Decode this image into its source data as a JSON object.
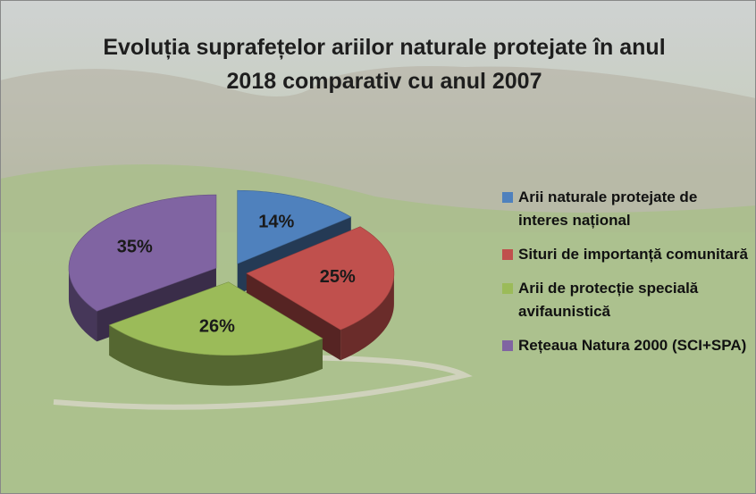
{
  "chart_data": {
    "type": "pie",
    "title": "Evoluția suprafețelor ariilor naturale protejate în anul 2018 comparativ cu anul 2007",
    "categories": [
      "Arii naturale protejate de interes național",
      "Situri de importanță comunitară",
      "Arii de protecție specială avifaunistică",
      "Rețeaua Natura 2000 (SCI+SPA)"
    ],
    "values": [
      14,
      25,
      26,
      35
    ],
    "value_labels": [
      "14%",
      "25%",
      "26%",
      "35%"
    ],
    "colors": [
      "#4f81bd",
      "#c0504d",
      "#9bbb59",
      "#8064a2"
    ],
    "legend": "right"
  }
}
